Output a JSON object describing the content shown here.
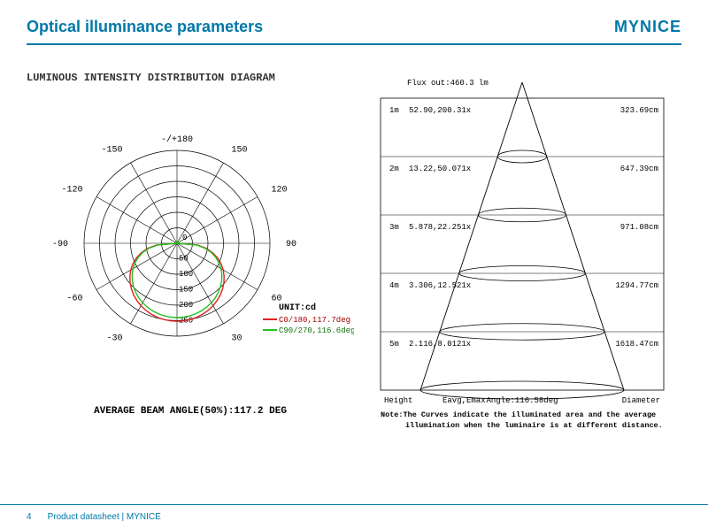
{
  "header": {
    "title": "Optical illuminance parameters",
    "brand": "MYNICE"
  },
  "polar": {
    "title": "LUMINOUS INTENSITY DISTRIBUTION DIAGRAM",
    "top_label": "-/+180",
    "angle_labels_left": [
      "-150",
      "-120",
      "-90",
      "-60",
      "-30"
    ],
    "angle_labels_right": [
      "150",
      "120",
      "90",
      "60",
      "30"
    ],
    "center_zero": "0",
    "radial_ticks": [
      "50",
      "100",
      "150",
      "200",
      "250"
    ],
    "unit_label": "UNIT:cd",
    "legend": [
      {
        "color": "#e02020",
        "text": "C0/180,117.7deg"
      },
      {
        "color": "#20c020",
        "text": "C90/270,116.6deg"
      }
    ],
    "caption": "AVERAGE BEAM ANGLE(50%):117.2 DEG",
    "ring_count": 6,
    "ring_color": "#000000",
    "bg": "#ffffff",
    "curve_c0_color": "#e02020",
    "curve_c90_color": "#20c020",
    "label_fontsize": 10,
    "tick_fontsize": 9
  },
  "cone": {
    "flux_label": "Flux out:460.3 lm",
    "rows": [
      {
        "h": "1m",
        "eavg_emax": "52.90,200.31x",
        "diameter": "323.69cm"
      },
      {
        "h": "2m",
        "eavg_emax": "13.22,50.071x",
        "diameter": "647.39cm"
      },
      {
        "h": "3m",
        "eavg_emax": "5.878,22.251x",
        "diameter": "971.08cm"
      },
      {
        "h": "4m",
        "eavg_emax": "3.306,12.521x",
        "diameter": "1294.77cm"
      },
      {
        "h": "5m",
        "eavg_emax": "2.116,8.0121x",
        "diameter": "1618.47cm"
      }
    ],
    "col_headers": {
      "h": "Height",
      "ee": "Eavg,Emax",
      "angle": "Angle:116.58deg",
      "d": "Diameter"
    },
    "note": "Note:The Curves indicate the illuminated area and the average illumination when the luminaire is at different distance.",
    "border_color": "#000000",
    "font_color": "#000000",
    "label_fontsize": 9,
    "note_fontsize": 8.5
  },
  "footer": {
    "page_number": "4",
    "text": "Product datasheet | MYNICE"
  }
}
